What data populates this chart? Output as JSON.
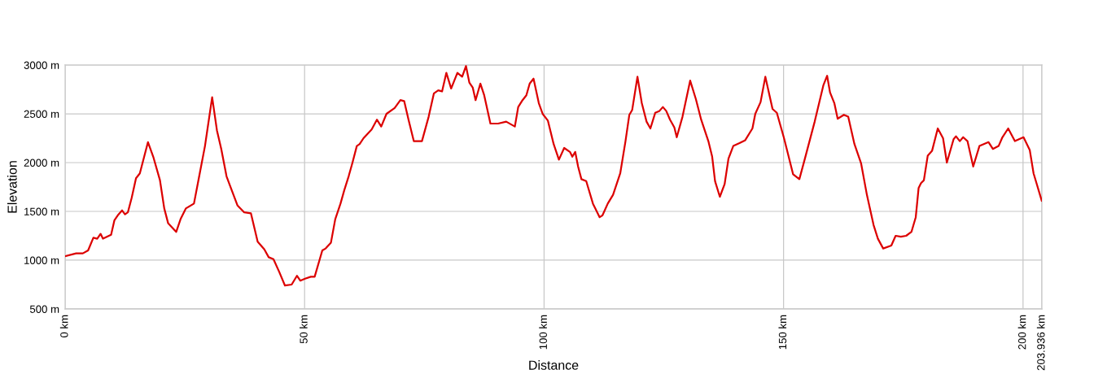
{
  "chart_data": {
    "type": "line",
    "xlabel": "Distance",
    "ylabel": "Elevation",
    "xlim": [
      0,
      203.936
    ],
    "ylim": [
      500,
      3000
    ],
    "xticks": [
      {
        "value": 0,
        "label": "0 km"
      },
      {
        "value": 50,
        "label": "50 km"
      },
      {
        "value": 100,
        "label": "100 km"
      },
      {
        "value": 150,
        "label": "150 km"
      },
      {
        "value": 200,
        "label": "200 km"
      },
      {
        "value": 203.936,
        "label": "203.936 km"
      }
    ],
    "yticks": [
      {
        "value": 500,
        "label": "500 m"
      },
      {
        "value": 1000,
        "label": "1000 m"
      },
      {
        "value": 1500,
        "label": "1500 m"
      },
      {
        "value": 2000,
        "label": "2000 m"
      },
      {
        "value": 2500,
        "label": "2500 m"
      },
      {
        "value": 3000,
        "label": "3000 m"
      }
    ],
    "grid": true,
    "line_style": "solid",
    "series": [
      {
        "color": "#dc0000",
        "x": [
          0.0,
          2.3,
          3.7,
          4.8,
          5.9,
          6.7,
          7.4,
          7.9,
          9.6,
          10.3,
          11.0,
          11.9,
          12.5,
          13.1,
          13.9,
          14.8,
          15.6,
          17.3,
          18.4,
          19.8,
          20.7,
          21.5,
          23.2,
          24.1,
          25.2,
          26.9,
          27.8,
          29.2,
          30.7,
          31.7,
          32.6,
          33.7,
          34.3,
          36.0,
          37.4,
          38.8,
          40.2,
          41.6,
          42.5,
          43.5,
          44.7,
          45.9,
          47.3,
          48.4,
          49.1,
          50.1,
          51.3,
          52.1,
          53.7,
          54.4,
          55.5,
          56.4,
          57.5,
          58.3,
          59.2,
          60.0,
          60.9,
          61.5,
          62.3,
          64.0,
          65.1,
          66.0,
          67.1,
          68.8,
          70.0,
          70.8,
          71.7,
          72.8,
          74.5,
          75.9,
          77.0,
          77.9,
          78.7,
          79.6,
          80.6,
          81.9,
          82.9,
          83.7,
          84.4,
          85.1,
          85.7,
          86.7,
          87.5,
          88.8,
          90.4,
          92.1,
          93.9,
          94.6,
          95.5,
          96.3,
          97.0,
          97.8,
          98.9,
          99.7,
          100.8,
          102.0,
          103.1,
          104.2,
          105.4,
          105.9,
          106.5,
          107.1,
          107.8,
          108.8,
          110.2,
          111.6,
          112.2,
          113.3,
          114.4,
          115.9,
          117.0,
          117.8,
          118.4,
          119.5,
          120.4,
          121.4,
          122.2,
          123.2,
          124.1,
          124.8,
          125.5,
          126.3,
          127.2,
          127.7,
          128.9,
          130.5,
          131.7,
          132.8,
          134.3,
          135.1,
          135.7,
          136.7,
          137.7,
          138.5,
          139.5,
          140.8,
          142.0,
          143.5,
          144.1,
          145.2,
          146.2,
          147.7,
          148.6,
          150.1,
          152.0,
          153.3,
          154.4,
          156.5,
          158.3,
          159.1,
          159.7,
          160.6,
          161.3,
          162.6,
          163.5,
          164.8,
          166.2,
          167.4,
          168.8,
          169.7,
          170.8,
          172.5,
          173.4,
          174.5,
          175.6,
          176.7,
          177.6,
          178.2,
          178.7,
          179.3,
          180.1,
          181.0,
          182.2,
          183.3,
          184.1,
          185.5,
          186.0,
          186.8,
          187.5,
          188.4,
          189.6,
          190.9,
          191.8,
          192.8,
          193.7,
          194.9,
          195.7,
          196.9,
          198.3,
          200.1,
          201.4,
          202.2,
          203.9
        ],
        "values": [
          1040,
          1070,
          1070,
          1100,
          1230,
          1220,
          1270,
          1220,
          1260,
          1410,
          1460,
          1510,
          1470,
          1490,
          1640,
          1840,
          1890,
          2210,
          2060,
          1820,
          1530,
          1380,
          1290,
          1420,
          1530,
          1580,
          1810,
          2170,
          2670,
          2330,
          2140,
          1860,
          1780,
          1560,
          1490,
          1480,
          1190,
          1110,
          1030,
          1010,
          880,
          740,
          750,
          840,
          790,
          810,
          830,
          830,
          1100,
          1120,
          1180,
          1420,
          1580,
          1720,
          1860,
          2000,
          2170,
          2190,
          2250,
          2340,
          2440,
          2370,
          2500,
          2560,
          2640,
          2630,
          2440,
          2220,
          2220,
          2470,
          2710,
          2740,
          2730,
          2920,
          2760,
          2920,
          2880,
          2990,
          2820,
          2770,
          2640,
          2810,
          2690,
          2400,
          2400,
          2420,
          2370,
          2570,
          2640,
          2690,
          2810,
          2860,
          2610,
          2500,
          2430,
          2190,
          2030,
          2150,
          2110,
          2060,
          2110,
          1960,
          1830,
          1810,
          1580,
          1440,
          1460,
          1580,
          1670,
          1890,
          2220,
          2490,
          2540,
          2880,
          2610,
          2420,
          2350,
          2510,
          2530,
          2570,
          2530,
          2440,
          2360,
          2260,
          2470,
          2840,
          2650,
          2440,
          2220,
          2060,
          1810,
          1650,
          1780,
          2040,
          2170,
          2200,
          2230,
          2350,
          2500,
          2620,
          2880,
          2550,
          2510,
          2250,
          1880,
          1830,
          2030,
          2420,
          2790,
          2890,
          2720,
          2610,
          2450,
          2490,
          2470,
          2190,
          1990,
          1670,
          1360,
          1220,
          1120,
          1150,
          1250,
          1240,
          1250,
          1290,
          1440,
          1740,
          1790,
          1820,
          2070,
          2120,
          2350,
          2250,
          2000,
          2240,
          2270,
          2220,
          2260,
          2220,
          1960,
          2170,
          2190,
          2210,
          2140,
          2170,
          2260,
          2350,
          2220,
          2260,
          2130,
          1890,
          1610
        ]
      }
    ]
  }
}
